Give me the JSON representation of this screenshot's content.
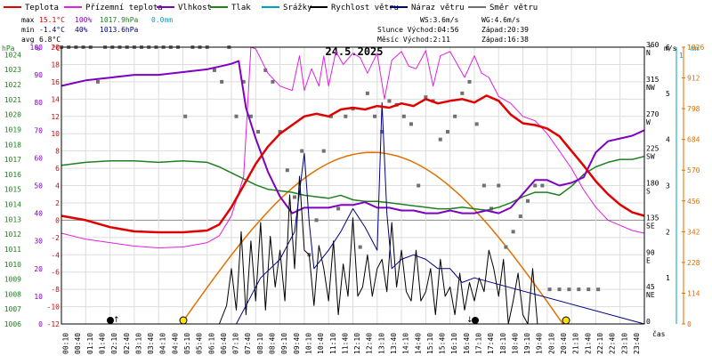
{
  "title": "24.5.2025",
  "legend": [
    {
      "label": "Teplota",
      "color": "#e00000"
    },
    {
      "label": "Přízemní teplota",
      "color": "#e020e0"
    },
    {
      "label": "Vlhkost",
      "color": "#8000c0"
    },
    {
      "label": "Tlak",
      "color": "#208020"
    },
    {
      "label": "Srážky",
      "color": "#00a0c0"
    },
    {
      "label": "Rychlost větru",
      "color": "#000000"
    },
    {
      "label": "Náraz větru",
      "color": "#000080"
    },
    {
      "label": "Směr větru",
      "color": "#707070"
    }
  ],
  "stats": {
    "max_label": "max",
    "max_temp": "15.1°C",
    "max_hum": "100%",
    "max_press": "1017.9hPa",
    "max_rain": "0.0mm",
    "min_label": "min",
    "min_temp": "-1.4°C",
    "min_hum": "40%",
    "min_press": "1013.6hPa",
    "avg_label": "avg",
    "avg_temp": "6.8°C",
    "ws": "WS:3.6m/s",
    "wg": "WG:4.6m/s",
    "sun": "Slunce Východ:04:56",
    "sun_set": "Západ:20:39",
    "moon": "Měsíc  Východ:2:11",
    "moon_set": "Západ:16:38"
  },
  "axis_units": {
    "hpa": "hPa",
    "pct": "%",
    "degc": "°C",
    "deg": "°",
    "ms": "m/s",
    "mm": "mm",
    "cas": "čas"
  },
  "axes": {
    "hpa_ticks": [
      "1024",
      "1023",
      "1022",
      "1021",
      "1020",
      "1019",
      "1018",
      "1017",
      "1016",
      "1015",
      "1014",
      "1013",
      "1012",
      "1011",
      "1010",
      "1009",
      "1008",
      "1007",
      "1006"
    ],
    "pct_ticks": [
      "100",
      "90",
      "80",
      "70",
      "60",
      "50",
      "40",
      "30",
      "20",
      "10",
      "0"
    ],
    "temp_ticks": [
      "20",
      "18",
      "16",
      "14",
      "12",
      "10",
      "8",
      "6",
      "4",
      "2",
      "0",
      "-2",
      "-4",
      "-6",
      "-8",
      "-10",
      "-12"
    ],
    "dir_ticks": [
      {
        "deg": "360",
        "lbl": "N"
      },
      {
        "deg": "315",
        "lbl": "NW"
      },
      {
        "deg": "270",
        "lbl": "W"
      },
      {
        "deg": "225",
        "lbl": "SW"
      },
      {
        "deg": "180",
        "lbl": "S"
      },
      {
        "deg": "135",
        "lbl": "SE"
      },
      {
        "deg": "90",
        "lbl": "E"
      },
      {
        "deg": "45",
        "lbl": "NE"
      },
      {
        "deg": "0",
        "lbl": ""
      }
    ],
    "ms_ticks": [
      "6",
      "5",
      "4",
      "3",
      "2",
      "1"
    ],
    "mm_ticks": [
      "1"
    ],
    "lux_ticks": [
      "1026",
      "912",
      "798",
      "684",
      "570",
      "456",
      "342",
      "228",
      "114",
      "0"
    ],
    "time_ticks": [
      "00:10",
      "00:40",
      "01:10",
      "01:40",
      "02:10",
      "02:40",
      "03:10",
      "03:40",
      "04:10",
      "04:40",
      "05:10",
      "05:40",
      "06:10",
      "06:40",
      "07:10",
      "07:40",
      "08:10",
      "08:40",
      "09:10",
      "09:40",
      "10:10",
      "10:40",
      "11:10",
      "11:40",
      "12:10",
      "12:40",
      "13:10",
      "13:40",
      "14:10",
      "14:40",
      "15:10",
      "15:40",
      "16:10",
      "16:40",
      "17:10",
      "17:40",
      "18:10",
      "18:40",
      "19:10",
      "19:40",
      "20:10",
      "20:40",
      "21:10",
      "21:40",
      "22:10",
      "22:40",
      "23:10",
      "23:40"
    ]
  },
  "chart_data": {
    "type": "line",
    "x_unit": "hour",
    "series": [
      {
        "name": "Teplota",
        "color": "#e00000",
        "x": [
          0,
          1,
          2,
          3,
          4,
          4.5,
          5,
          5.5,
          6,
          6.5,
          7,
          7.5,
          8,
          8.5,
          9,
          9.5,
          10,
          10.5,
          11,
          11.5,
          12,
          12.5,
          13,
          13.5,
          14,
          14.5,
          15,
          15.5,
          16,
          16.5,
          17,
          17.5,
          18,
          18.5,
          19,
          19.5,
          20,
          20.5,
          21,
          21.5,
          22,
          22.5,
          23,
          23.5,
          24
        ],
        "y": [
          0.5,
          0,
          -0.8,
          -1.3,
          -1.4,
          -1.4,
          -1.4,
          -1.3,
          -1.2,
          -0.5,
          1.5,
          4,
          6.5,
          8.5,
          10,
          11,
          12,
          12.3,
          12,
          12.8,
          13,
          12.8,
          13.2,
          13,
          13.5,
          13.2,
          14,
          13.5,
          13.8,
          14,
          13.6,
          14.4,
          13.8,
          12.2,
          11.2,
          11,
          10.6,
          9.7,
          8,
          6.3,
          4.5,
          3,
          1.8,
          0.9,
          0.5
        ]
      },
      {
        "name": "Přízemní teplota",
        "color": "#e020e0",
        "x": [
          0,
          1,
          2,
          3,
          4,
          5,
          6,
          6.5,
          7,
          7.5,
          7.8,
          8,
          8.5,
          9,
          9.5,
          9.8,
          10,
          10.3,
          10.6,
          10.8,
          11,
          11.3,
          11.6,
          12,
          12.3,
          12.6,
          13,
          13.3,
          13.6,
          14,
          14.3,
          14.6,
          15,
          15.3,
          15.6,
          16,
          16.3,
          16.6,
          17,
          17.3,
          17.6,
          18,
          18.5,
          19,
          19.5,
          20,
          20.5,
          21,
          21.5,
          22,
          22.5,
          23,
          23.5,
          24
        ],
        "y": [
          -1.5,
          -2.2,
          -2.6,
          -3,
          -3.2,
          -3.1,
          -2.6,
          -1.8,
          0.5,
          5,
          20,
          19.8,
          17,
          15.5,
          15,
          19,
          15,
          17.5,
          15.5,
          19,
          15.5,
          19.5,
          18,
          19.3,
          18.8,
          17,
          19.3,
          14,
          18.5,
          19.5,
          17.8,
          17.5,
          19.6,
          15.5,
          19,
          19.5,
          18,
          16.5,
          19,
          17,
          16.5,
          14.3,
          13.5,
          12,
          11.5,
          10,
          8,
          6,
          3.5,
          1.5,
          0,
          -0.6,
          -1.2,
          -1.5
        ]
      },
      {
        "name": "Vlhkost",
        "color": "#8000c0",
        "x": [
          0,
          0.5,
          1,
          2,
          3,
          4,
          5,
          6,
          6.5,
          7,
          7.3,
          7.6,
          8,
          8.5,
          9,
          9.5,
          10,
          10.5,
          11,
          11.5,
          12,
          12.5,
          13,
          13.5,
          14,
          14.5,
          15,
          15.5,
          16,
          16.5,
          17,
          17.5,
          18,
          18.5,
          19,
          19.5,
          20,
          20.5,
          21,
          21.5,
          22,
          22.5,
          23,
          23.5,
          24
        ],
        "y": [
          86,
          87,
          88,
          89,
          90,
          90,
          91,
          92,
          93,
          94,
          95,
          78,
          67,
          55,
          46,
          40,
          42,
          42,
          42,
          43,
          43,
          44,
          42,
          42,
          41,
          41,
          40,
          40,
          41,
          40,
          40,
          41,
          40,
          42,
          47,
          52,
          52,
          50,
          51,
          53,
          62,
          66,
          67,
          68,
          70
        ]
      },
      {
        "name": "Tlak",
        "color": "#208020",
        "x": [
          0,
          1,
          2,
          3,
          4,
          5,
          6,
          6.5,
          7,
          7.5,
          8,
          8.5,
          9,
          9.5,
          10,
          10.5,
          11,
          11.5,
          12,
          12.5,
          13,
          13.5,
          14,
          14.5,
          15,
          15.5,
          16,
          16.5,
          17,
          17.5,
          18,
          18.5,
          19,
          19.5,
          20,
          20.5,
          21,
          21.5,
          22,
          22.5,
          23,
          23.5,
          24
        ],
        "y": [
          1016.6,
          1016.8,
          1016.9,
          1016.9,
          1016.8,
          1016.9,
          1016.8,
          1016.5,
          1016.1,
          1015.7,
          1015.3,
          1015.0,
          1014.9,
          1014.8,
          1014.6,
          1014.5,
          1014.4,
          1014.6,
          1014.3,
          1014.2,
          1014.2,
          1014.1,
          1014.0,
          1013.9,
          1013.8,
          1013.7,
          1013.7,
          1013.8,
          1013.7,
          1013.6,
          1013.8,
          1014.1,
          1014.5,
          1014.8,
          1014.8,
          1014.6,
          1015.2,
          1016.0,
          1016.5,
          1016.8,
          1017.0,
          1017.0,
          1017.2
        ]
      },
      {
        "name": "Rychlost větru",
        "color": "#000000",
        "x": [
          0,
          6,
          6.5,
          6.8,
          7,
          7.2,
          7.4,
          7.6,
          7.8,
          8,
          8.2,
          8.4,
          8.6,
          8.8,
          9,
          9.2,
          9.4,
          9.6,
          9.8,
          10,
          10.2,
          10.4,
          10.6,
          10.8,
          11,
          11.2,
          11.4,
          11.6,
          11.8,
          12,
          12.2,
          12.4,
          12.6,
          12.8,
          13,
          13.2,
          13.4,
          13.6,
          13.8,
          14,
          14.2,
          14.4,
          14.6,
          14.8,
          15,
          15.2,
          15.4,
          15.6,
          15.8,
          16,
          16.2,
          16.4,
          16.6,
          16.8,
          17,
          17.2,
          17.4,
          17.6,
          17.8,
          18,
          18.2,
          18.4,
          18.6,
          18.8,
          19,
          19.2,
          19.4,
          19.6,
          20,
          24
        ],
        "y": [
          0,
          0,
          0,
          0.4,
          1.2,
          0.3,
          2,
          0.2,
          1.8,
          0.5,
          2.2,
          0.3,
          1.9,
          0.8,
          1.6,
          0.5,
          2.8,
          1.2,
          3.2,
          1.6,
          1.5,
          0.4,
          1.7,
          1.2,
          0.5,
          1.8,
          0.2,
          1.3,
          0.6,
          2.3,
          0.6,
          0.8,
          1.5,
          0.6,
          1.2,
          1.4,
          0.7,
          2.2,
          0.8,
          1.6,
          0.7,
          0.5,
          1.6,
          0.5,
          0.7,
          1.2,
          0.2,
          1.4,
          0.6,
          0.8,
          0.2,
          1.1,
          0.3,
          0.9,
          0.5,
          1.0,
          0.7,
          1.6,
          1.2,
          0.6,
          1.4,
          0,
          0.5,
          1.1,
          0.2,
          0,
          1.2,
          0,
          0,
          0
        ]
      },
      {
        "name": "Náraz větru",
        "color": "#000080",
        "x": [
          0,
          6,
          7.2,
          7.6,
          8.2,
          9,
          9.6,
          10,
          10.2,
          10.4,
          11,
          11.5,
          12,
          12.5,
          13,
          13.2,
          13.4,
          13.6,
          14,
          14.5,
          15,
          15.5,
          16,
          16.5,
          17,
          24
        ],
        "y": [
          0,
          0,
          0,
          0.4,
          1,
          1.4,
          2,
          3.7,
          2.2,
          1.2,
          1.6,
          2,
          2.5,
          2.1,
          1.6,
          4.8,
          2.4,
          1.2,
          1.4,
          1.5,
          1.4,
          1.2,
          1.2,
          0.9,
          1,
          0
        ]
      },
      {
        "name": "Srážky",
        "color": "#00a0c0",
        "x": [
          0,
          24
        ],
        "y": [
          0,
          0
        ]
      }
    ],
    "direction_points": {
      "name": "Směr větru",
      "color": "#707070",
      "x": [
        0,
        0.3,
        0.6,
        0.9,
        1.2,
        1.5,
        1.8,
        2.1,
        2.4,
        2.7,
        3,
        3.3,
        3.6,
        3.9,
        4.2,
        4.5,
        4.8,
        5.1,
        5.4,
        5.7,
        6,
        6.3,
        6.6,
        6.9,
        7.2,
        7.5,
        7.8,
        8.1,
        8.4,
        8.7,
        9,
        9.3,
        9.6,
        9.9,
        10.2,
        10.5,
        10.8,
        11.1,
        11.4,
        11.7,
        12,
        12.3,
        12.6,
        12.9,
        13.2,
        13.5,
        13.8,
        14.1,
        14.4,
        14.7,
        15,
        15.3,
        15.6,
        15.9,
        16.2,
        16.5,
        16.8,
        17.1,
        17.4,
        17.7,
        18,
        18.3,
        18.6,
        18.9,
        19.2,
        19.5,
        19.8,
        20.1,
        20.5,
        20.9,
        21.3,
        21.7,
        22.1
      ],
      "y": [
        360,
        360,
        360,
        360,
        360,
        315,
        360,
        360,
        360,
        360,
        360,
        360,
        360,
        360,
        360,
        360,
        360,
        270,
        360,
        360,
        360,
        330,
        315,
        360,
        270,
        315,
        270,
        250,
        330,
        315,
        250,
        200,
        165,
        225,
        90,
        135,
        225,
        270,
        150,
        270,
        280,
        100,
        300,
        270,
        250,
        290,
        285,
        270,
        260,
        180,
        295,
        290,
        240,
        250,
        270,
        300,
        315,
        260,
        180,
        150,
        180,
        100,
        120,
        140,
        160,
        180,
        180,
        45,
        45,
        45,
        45,
        45,
        45
      ]
    },
    "sun_curve": {
      "color": "#e07000",
      "rise_hour": 4.93,
      "set_hour": 20.65,
      "peak": 1026,
      "unit": "W/m²"
    },
    "y_axes": {
      "temp": {
        "min": -12,
        "max": 20,
        "unit": "°C"
      },
      "humidity": {
        "min": 0,
        "max": 100,
        "unit": "%"
      },
      "pressure": {
        "min": 1006,
        "max": 1024.5,
        "unit": "hPa"
      },
      "wind": {
        "min": 0,
        "max": 6,
        "unit": "m/s"
      },
      "direction": {
        "min": 0,
        "max": 360,
        "unit": "°"
      },
      "radiation": {
        "min": 0,
        "max": 1026
      }
    },
    "grid": true
  }
}
